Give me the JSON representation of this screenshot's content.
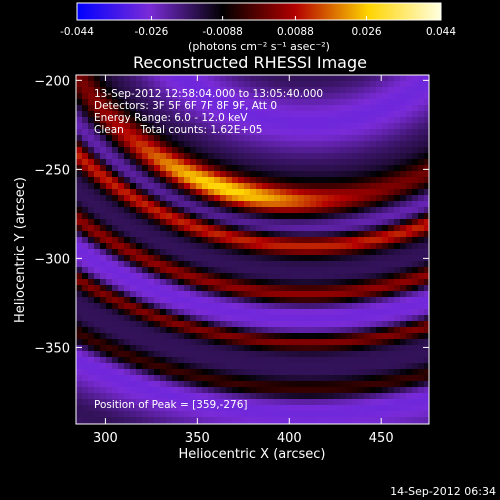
{
  "chart_data": {
    "type": "heatmap",
    "title": "Reconstructed RHESSI Image",
    "xlabel": "Heliocentric X (arcsec)",
    "ylabel": "Heliocentric Y (arcsec)",
    "xlim": [
      284,
      476
    ],
    "ylim": [
      -393,
      -197
    ],
    "x_ticks": [
      300,
      350,
      400,
      450
    ],
    "y_ticks": [
      -200,
      -250,
      -300,
      -350
    ],
    "colorbar": {
      "range": [
        -0.044,
        0.044
      ],
      "ticks": [
        "-0.044",
        "-0.026",
        "-0.0088",
        "0.0088",
        "0.026",
        "0.044"
      ],
      "label": "(photons cm⁻² s⁻¹ asec⁻²)",
      "colors": [
        "#0000ff",
        "#7a2bd8",
        "#000000",
        "#b30000",
        "#ffd400",
        "#ffffe0"
      ]
    },
    "annotations": [
      "13-Sep-2012 12:58:04.000 to 13:05:40.000",
      "Detectors: 3F 5F 6F 7F 8F 9F, Att 0",
      "Energy Range: 6.0 - 12.0 keV",
      "Clean     Total counts: 1.62E+05"
    ],
    "peak_label": "Position of Peak = [359,-276]",
    "peak": [
      359,
      -276
    ],
    "ring_center": [
      410,
      -130
    ],
    "rings": [
      {
        "radius": 145,
        "width": 10,
        "amplitude": 0.04
      },
      {
        "radius": 171,
        "width": 6,
        "amplitude": 0.026
      },
      {
        "radius": 200,
        "width": 6,
        "amplitude": 0.022
      },
      {
        "radius": 228,
        "width": 5,
        "amplitude": 0.018
      },
      {
        "radius": 256,
        "width": 6,
        "amplitude": 0.013
      }
    ],
    "background_level": -0.022,
    "grid": false
  },
  "footer": {
    "timestamp": "14-Sep-2012 06:34"
  }
}
